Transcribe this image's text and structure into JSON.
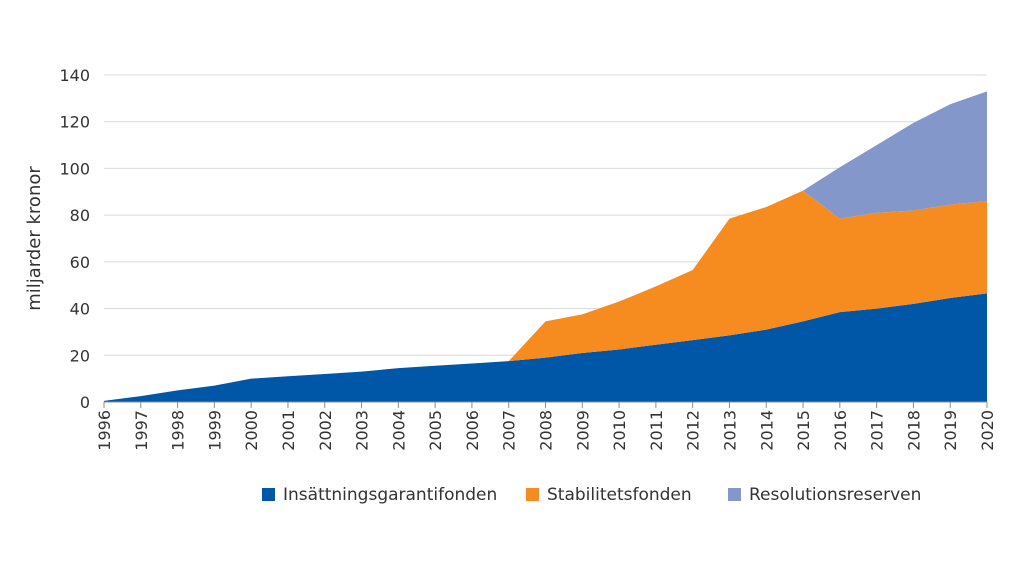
{
  "chart_data": {
    "type": "area",
    "stacked": true,
    "ylabel": "miljarder kronor",
    "xlabel": "",
    "ylim": [
      0,
      140
    ],
    "yticks": [
      0,
      20,
      40,
      60,
      80,
      100,
      120,
      140
    ],
    "grid": true,
    "legend_position": "bottom",
    "x": [
      "1996",
      "1997",
      "1998",
      "1999",
      "2000",
      "2001",
      "2002",
      "2003",
      "2004",
      "2005",
      "2006",
      "2007",
      "2008",
      "2009",
      "2010",
      "2011",
      "2012",
      "2013",
      "2014",
      "2015",
      "2016",
      "2017",
      "2018",
      "2019",
      "2020"
    ],
    "series": [
      {
        "name": "Insättningsgarantifonden",
        "color": "#0056a7",
        "values": [
          0.5,
          2.5,
          5,
          7,
          10,
          11,
          12,
          13,
          14.5,
          15.5,
          16.5,
          17.5,
          19,
          21,
          22.5,
          24.5,
          26.5,
          28.5,
          31,
          34.5,
          38.5,
          40,
          42,
          44.5,
          46.5
        ]
      },
      {
        "name": "Stabilitetsfonden",
        "color": "#f68b1f",
        "values": [
          0,
          0,
          0,
          0,
          0,
          0,
          0,
          0,
          0,
          0,
          0,
          0,
          15.5,
          16.5,
          20.5,
          25,
          30,
          50,
          52.5,
          56,
          40,
          41,
          40,
          40,
          39.5
        ]
      },
      {
        "name": "Resolutionsreserven",
        "color": "#8497ca",
        "values": [
          0,
          0,
          0,
          0,
          0,
          0,
          0,
          0,
          0,
          0,
          0,
          0,
          0,
          0,
          0,
          0,
          0,
          0,
          0,
          0,
          22,
          29,
          37.5,
          43,
          47
        ]
      }
    ]
  }
}
